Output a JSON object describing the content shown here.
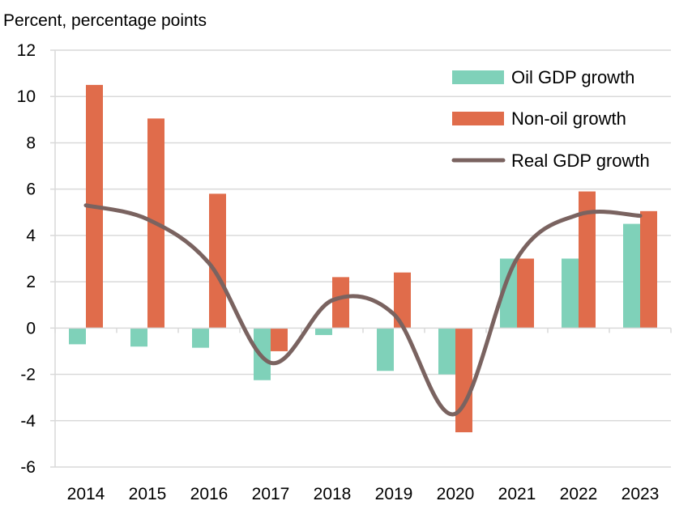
{
  "chart_data": {
    "type": "bar",
    "unit_label": "Percent, percentage points",
    "categories": [
      "2014",
      "2015",
      "2016",
      "2017",
      "2018",
      "2019",
      "2020",
      "2021",
      "2022",
      "2023"
    ],
    "series": [
      {
        "name": "Oil GDP growth",
        "kind": "bar",
        "color": "#7fd1b9",
        "values": [
          -0.7,
          -0.8,
          -0.85,
          -2.25,
          -0.3,
          -1.85,
          -2.0,
          3.0,
          3.0,
          4.5
        ]
      },
      {
        "name": "Non-oil growth",
        "kind": "bar",
        "color": "#e06c4b",
        "values": [
          10.5,
          9.05,
          5.8,
          -1.0,
          2.2,
          2.4,
          -4.5,
          3.0,
          5.9,
          5.05
        ]
      },
      {
        "name": "Real GDP growth",
        "kind": "line",
        "color": "#7a6360",
        "values": [
          5.3,
          4.7,
          2.8,
          -1.5,
          1.2,
          0.6,
          -3.7,
          3.0,
          4.9,
          4.85
        ]
      }
    ],
    "ylim": [
      -6,
      12
    ],
    "yticks": [
      -6,
      -4,
      -2,
      0,
      2,
      4,
      6,
      8,
      10,
      12
    ],
    "grid": true,
    "legend": "top-right"
  }
}
